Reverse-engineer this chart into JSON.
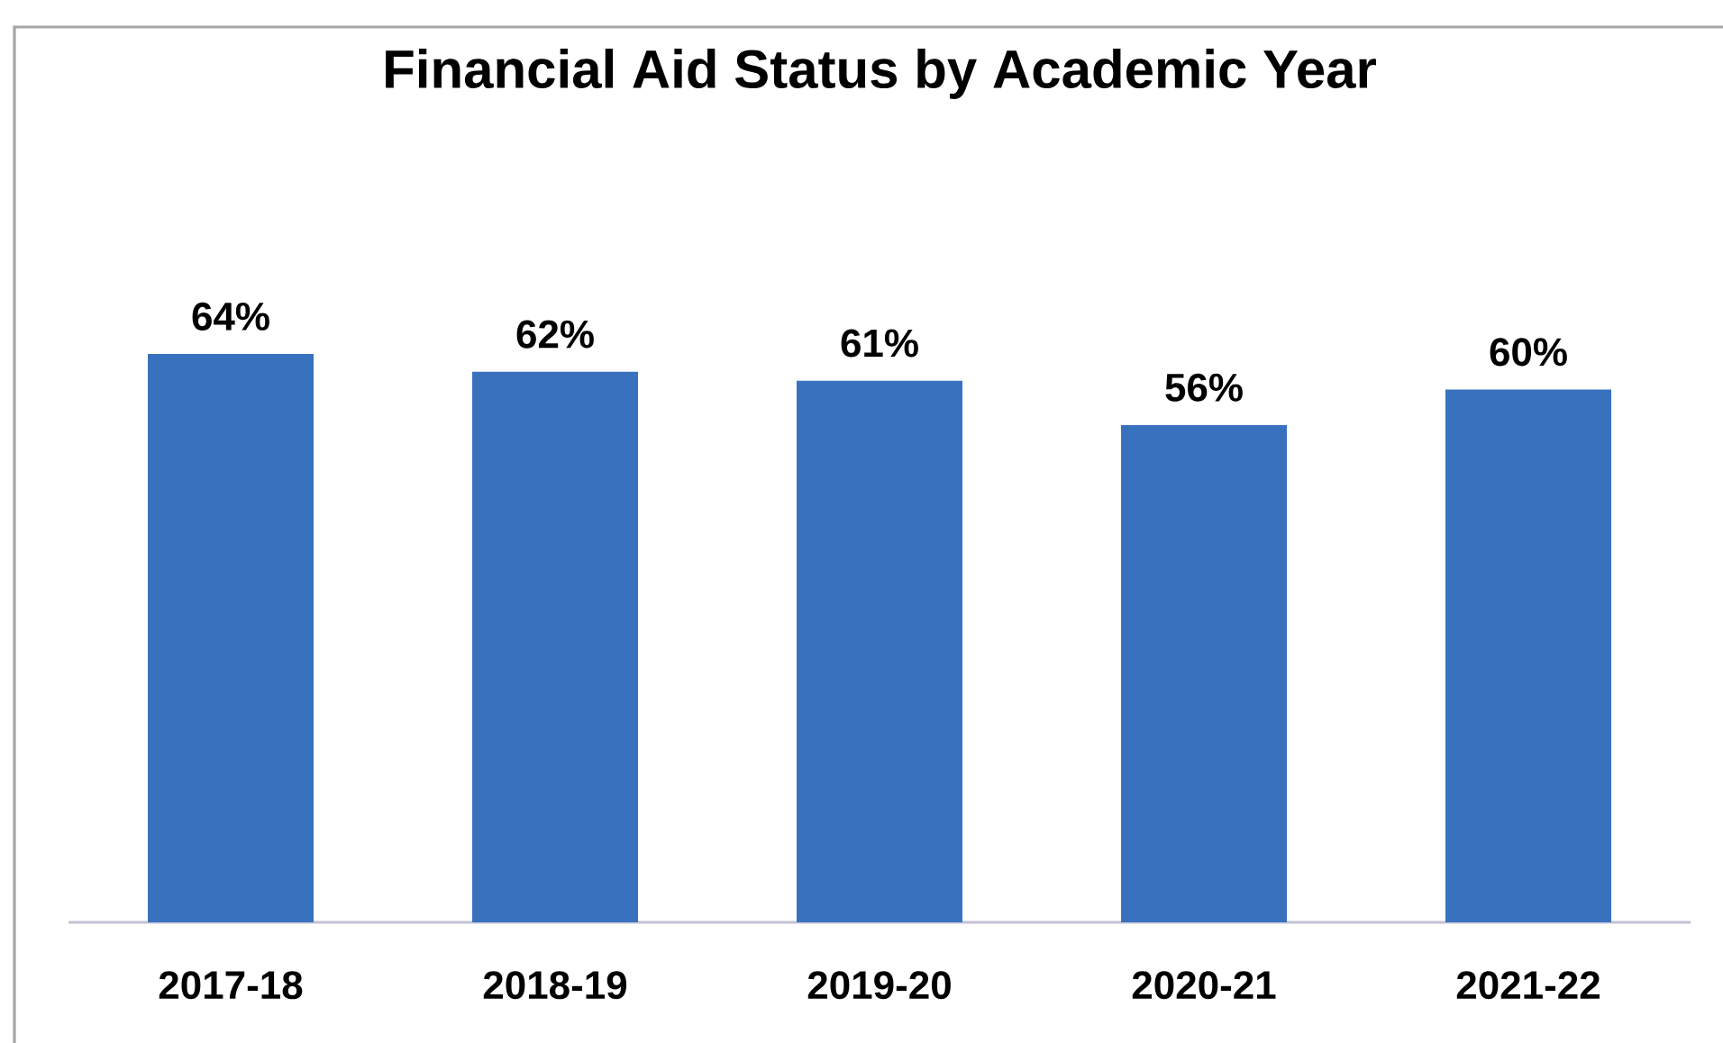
{
  "chart_data": {
    "type": "bar",
    "title": "Financial Aid Status by Academic Year",
    "categories": [
      "2017-18",
      "2018-19",
      "2019-20",
      "2020-21",
      "2021-22"
    ],
    "values": [
      64,
      62,
      61,
      56,
      60
    ],
    "value_labels": [
      "64%",
      "62%",
      "61%",
      "56%",
      "60%"
    ],
    "color": "#3872bf"
  }
}
